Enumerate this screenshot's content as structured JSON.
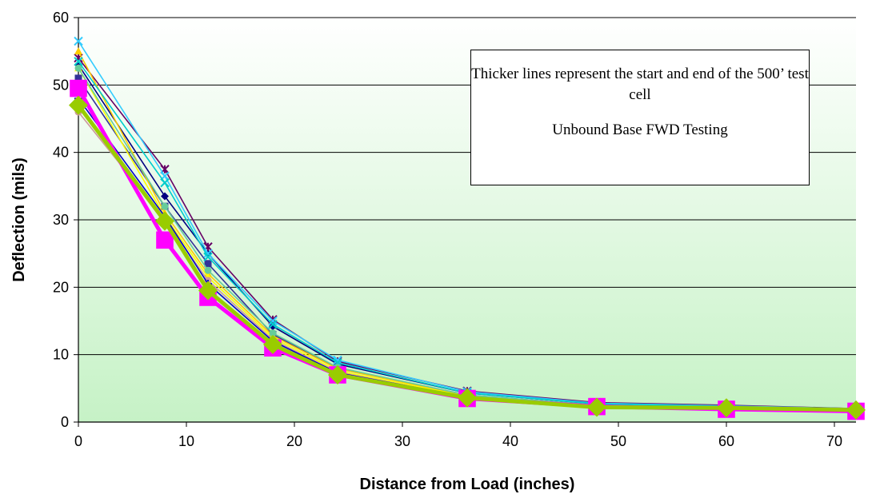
{
  "chart_data": {
    "type": "line",
    "xlabel": "Distance from Load (inches)",
    "ylabel": "Deflection (mils)",
    "xlim": [
      0,
      72
    ],
    "ylim": [
      0,
      60
    ],
    "xticks": [
      0,
      10,
      20,
      30,
      40,
      50,
      60,
      70
    ],
    "yticks": [
      0,
      10,
      20,
      30,
      40,
      50,
      60
    ],
    "grid": "horizontal",
    "background": "green gradient",
    "x": [
      0,
      8,
      12,
      18,
      24,
      36,
      48,
      60,
      72
    ],
    "annotation": {
      "line1": "Thicker lines represent the start and end of the 500’ test cell",
      "line2": "Unbound Base FWD Testing"
    },
    "series": [
      {
        "color": "#000080",
        "marker": "diamond",
        "thick": false,
        "values": [
          53.0,
          33.5,
          25.0,
          14.2,
          8.6,
          4.3,
          2.7,
          2.3,
          1.9
        ]
      },
      {
        "color": "#333399",
        "marker": "square",
        "thick": false,
        "values": [
          51.0,
          32.0,
          23.5,
          13.0,
          8.0,
          4.0,
          2.5,
          2.1,
          1.8
        ]
      },
      {
        "color": "#660066",
        "marker": "star",
        "thick": false,
        "values": [
          54.0,
          37.5,
          26.0,
          15.2,
          9.0,
          4.6,
          2.9,
          2.5,
          2.0
        ]
      },
      {
        "color": "#ffcc00",
        "marker": "triangle",
        "thick": false,
        "values": [
          55.0,
          31.0,
          22.0,
          12.8,
          7.9,
          3.9,
          2.5,
          2.1,
          1.8
        ]
      },
      {
        "color": "#ffff00",
        "marker": "triangle",
        "thick": false,
        "values": [
          52.5,
          30.5,
          21.5,
          12.5,
          7.6,
          3.8,
          2.4,
          2.0,
          1.7
        ]
      },
      {
        "color": "#33ccff",
        "marker": "x",
        "thick": false,
        "values": [
          56.5,
          36.5,
          25.0,
          15.0,
          9.2,
          4.5,
          2.8,
          2.4,
          2.0
        ]
      },
      {
        "color": "#00cccc",
        "marker": "x",
        "thick": false,
        "values": [
          53.5,
          35.5,
          24.5,
          14.5,
          8.8,
          4.3,
          2.7,
          2.3,
          1.9
        ]
      },
      {
        "color": "#66cc99",
        "marker": "circle",
        "thick": false,
        "values": [
          52.5,
          32.0,
          22.5,
          13.2,
          8.1,
          4.0,
          2.5,
          2.1,
          1.8
        ]
      },
      {
        "color": "#cc9999",
        "marker": "circle",
        "thick": false,
        "values": [
          46.0,
          30.0,
          21.0,
          12.2,
          7.4,
          3.7,
          2.3,
          2.0,
          1.7
        ]
      },
      {
        "color": "#0000cc",
        "marker": "plus",
        "thick": false,
        "values": [
          48.0,
          30.5,
          20.5,
          12.0,
          7.3,
          3.7,
          2.3,
          2.0,
          1.7
        ]
      },
      {
        "color": "#ff00ff",
        "marker": "square",
        "thick": true,
        "values": [
          49.5,
          27.0,
          18.5,
          11.0,
          7.0,
          3.5,
          2.3,
          1.9,
          1.6
        ]
      },
      {
        "color": "#99cc00",
        "marker": "diamond",
        "thick": true,
        "values": [
          47.0,
          29.8,
          19.5,
          11.5,
          7.0,
          3.6,
          2.2,
          2.1,
          1.8
        ]
      }
    ]
  }
}
